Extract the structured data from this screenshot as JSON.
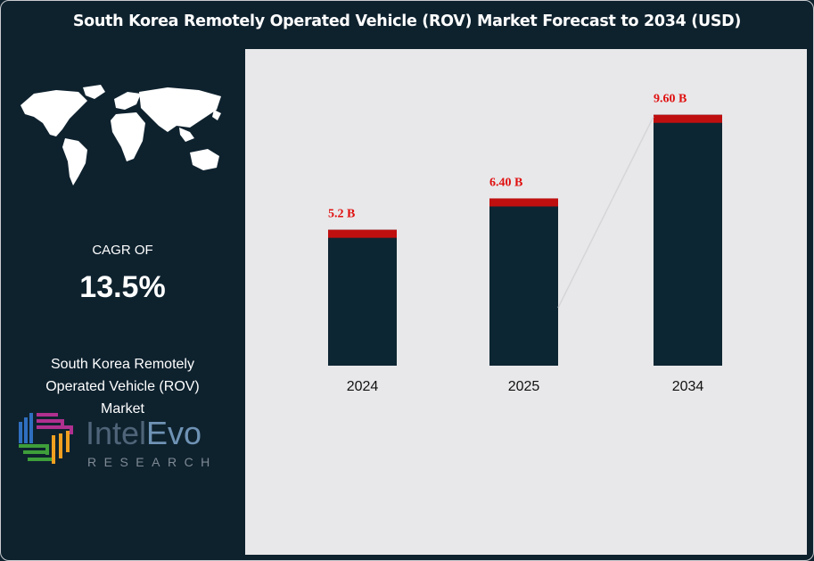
{
  "title": "South Korea Remotely Operated Vehicle (ROV) Market Forecast to 2034 (USD)",
  "left_panel": {
    "cagr_label": "CAGR OF",
    "cagr_value": "13.5%",
    "market_name": "South Korea Remotely Operated Vehicle (ROV) Market",
    "icon": "world-map-icon"
  },
  "logo": {
    "name": "IntelEvo",
    "sub": "RESEARCH"
  },
  "colors": {
    "bar": "#0d2633",
    "cap": "#c00f0f",
    "label": "#e01010",
    "panel_bg": "#e8e8ea",
    "dark_bg": "#0e222e"
  },
  "chart_data": {
    "type": "bar",
    "title": "South Korea Remotely Operated Vehicle (ROV) Market Forecast to 2034 (USD)",
    "categories": [
      "2024",
      "2025",
      "2034"
    ],
    "values": [
      5.2,
      6.4,
      9.6
    ],
    "data_labels": [
      "5.2 B",
      "6.40 B",
      "9.60 B"
    ],
    "unit": "B USD",
    "ylim": [
      0,
      10
    ],
    "grid": false,
    "legend": "none"
  }
}
